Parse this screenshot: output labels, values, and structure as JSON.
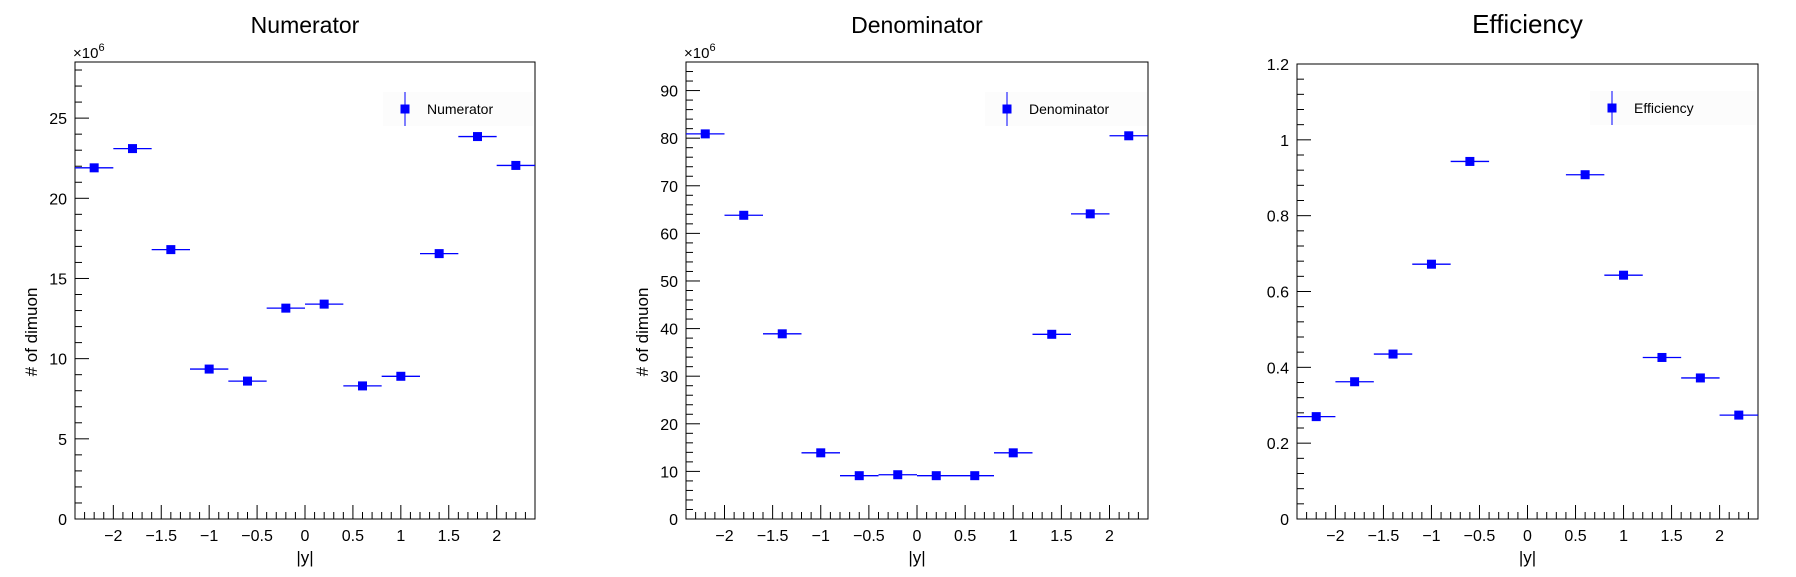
{
  "chart_data": [
    {
      "type": "scatter",
      "title": "Numerator",
      "xlabel": "|y|",
      "ylabel": "# of dimuon",
      "exponent_label": "×10",
      "exponent_power": "6",
      "xlim": [
        -2.4,
        2.4
      ],
      "ylim": [
        0,
        28.5
      ],
      "xticks": [
        -2,
        -1.5,
        -1,
        -0.5,
        0,
        0.5,
        1,
        1.5,
        2
      ],
      "xtick_labels": [
        "−2",
        "−1.5",
        "−1",
        "−0.5",
        "0",
        "0.5",
        "1",
        "1.5",
        "2"
      ],
      "yticks": [
        0,
        5,
        10,
        15,
        20,
        25
      ],
      "ytick_labels": [
        "0",
        "5",
        "10",
        "15",
        "20",
        "25"
      ],
      "x": [
        -2.2,
        -1.8,
        -1.4,
        -1.0,
        -0.6,
        -0.2,
        0.2,
        0.6,
        1.0,
        1.4,
        1.8,
        2.2
      ],
      "x_err": 0.2,
      "series": [
        {
          "name": "Numerator",
          "values": [
            21.9,
            23.1,
            16.8,
            9.35,
            8.6,
            13.15,
            13.4,
            8.3,
            8.9,
            16.55,
            23.85,
            22.05
          ]
        }
      ],
      "legend": "top-right",
      "marker_color": "#0000ff",
      "grid": false
    },
    {
      "type": "scatter",
      "title": "Denominator",
      "xlabel": "|y|",
      "ylabel": "# of dimuon",
      "exponent_label": "×10",
      "exponent_power": "6",
      "xlim": [
        -2.4,
        2.4
      ],
      "ylim": [
        0,
        96
      ],
      "xticks": [
        -2,
        -1.5,
        -1,
        -0.5,
        0,
        0.5,
        1,
        1.5,
        2
      ],
      "xtick_labels": [
        "−2",
        "−1.5",
        "−1",
        "−0.5",
        "0",
        "0.5",
        "1",
        "1.5",
        "2"
      ],
      "yticks": [
        0,
        10,
        20,
        30,
        40,
        50,
        60,
        70,
        80,
        90
      ],
      "ytick_labels": [
        "0",
        "10",
        "20",
        "30",
        "40",
        "50",
        "60",
        "70",
        "80",
        "90"
      ],
      "x": [
        -2.2,
        -1.8,
        -1.4,
        -1.0,
        -0.6,
        -0.2,
        0.2,
        0.6,
        1.0,
        1.4,
        1.8,
        2.2
      ],
      "x_err": 0.2,
      "series": [
        {
          "name": "Denominator",
          "values": [
            80.9,
            63.8,
            38.9,
            13.9,
            9.1,
            9.3,
            9.1,
            9.1,
            13.9,
            38.8,
            64.1,
            80.5
          ]
        }
      ],
      "legend": "top-right",
      "marker_color": "#0000ff",
      "grid": false
    },
    {
      "type": "scatter",
      "title": "Efficiency",
      "xlabel": "|y|",
      "ylabel": "",
      "xlim": [
        -2.4,
        2.4
      ],
      "ylim": [
        0,
        1.2
      ],
      "xticks": [
        -2,
        -1.5,
        -1,
        -0.5,
        0,
        0.5,
        1,
        1.5,
        2
      ],
      "xtick_labels": [
        "−2",
        "−1.5",
        "−1",
        "−0.5",
        "0",
        "0.5",
        "1",
        "1.5",
        "2"
      ],
      "yticks": [
        0,
        0.2,
        0.4,
        0.6,
        0.8,
        1,
        1.2
      ],
      "ytick_labels": [
        "0",
        "0.2",
        "0.4",
        "0.6",
        "0.8",
        "1",
        "1.2"
      ],
      "x": [
        -2.2,
        -1.8,
        -1.4,
        -1.0,
        -0.6,
        0.6,
        1.0,
        1.4,
        1.8,
        2.2
      ],
      "x_err": 0.2,
      "series": [
        {
          "name": "Efficiency",
          "values": [
            0.27,
            0.362,
            0.435,
            0.672,
            0.943,
            0.908,
            0.643,
            0.426,
            0.372,
            0.274
          ]
        }
      ],
      "legend": "top-right",
      "marker_color": "#0000ff",
      "grid": false
    }
  ]
}
